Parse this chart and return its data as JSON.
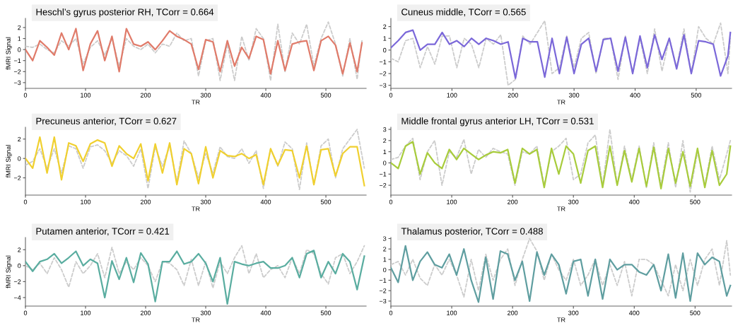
{
  "chart_data": [
    {
      "type": "line",
      "title": "Heschl’s gyrus posterior RH, TCorr = 0.664",
      "xlabel": "TR",
      "ylabel": "fMRI Signal",
      "xlim": [
        0,
        567
      ],
      "ylim": [
        -3.52,
        2.83
      ],
      "xticks": [
        0,
        100,
        200,
        300,
        400,
        500
      ],
      "yticks": [
        -3,
        -2,
        -1,
        0,
        1,
        2
      ],
      "x": [
        0,
        12,
        24,
        36,
        48,
        60,
        72,
        84,
        96,
        108,
        120,
        132,
        144,
        156,
        168,
        180,
        192,
        204,
        216,
        228,
        240,
        252,
        264,
        276,
        288,
        300,
        312,
        324,
        336,
        348,
        360,
        372,
        384,
        396,
        408,
        420,
        432,
        444,
        456,
        468,
        480,
        492,
        504,
        516,
        528,
        540,
        552,
        560
      ],
      "series": [
        {
          "color": "#cccccc",
          "line_style": "dashed",
          "values": [
            0.3,
            0.2,
            0.5,
            0.0,
            -0.3,
            0.8,
            0.3,
            1.0,
            -1.3,
            0.2,
            0.8,
            -0.5,
            1.0,
            -1.5,
            1.0,
            0.3,
            0.0,
            0.5,
            -0.3,
            0.5,
            0.3,
            1.5,
            0.8,
            1.0,
            -2.4,
            0.8,
            1.0,
            -2.8,
            0.5,
            -2.8,
            1.2,
            -1.0,
            1.9,
            1.0,
            -2.8,
            2.3,
            -2.0,
            1.5,
            0.5,
            2.3,
            -1.5,
            1.0,
            2.5,
            0.5,
            -2.4,
            1.0,
            -2.7,
            0.8
          ]
        },
        {
          "color": "#e07b6a",
          "line_style": "solid",
          "values": [
            0.0,
            -1.0,
            0.8,
            0.2,
            -0.5,
            1.5,
            0.0,
            1.9,
            -1.9,
            0.5,
            1.7,
            -1.0,
            1.2,
            -2.0,
            1.9,
            0.5,
            0.3,
            0.7,
            0.0,
            0.8,
            1.7,
            1.2,
            0.9,
            0.5,
            -1.8,
            0.9,
            0.7,
            -2.0,
            0.8,
            -1.5,
            0.2,
            -0.8,
            1.2,
            0.9,
            -2.2,
            0.8,
            -1.9,
            0.5,
            0.7,
            0.8,
            -1.9,
            0.8,
            1.2,
            0.4,
            -2.2,
            0.6,
            -2.0,
            0.6
          ]
        }
      ]
    },
    {
      "type": "line",
      "title": "Cuneus middle, TCorr = 0.565",
      "xlabel": "TR",
      "xlim": [
        0,
        558
      ],
      "ylim": [
        -3.26,
        2.7
      ],
      "xticks": [
        0,
        100,
        200,
        300,
        400,
        500
      ],
      "yticks": [
        -3,
        -2,
        -1,
        0,
        1,
        2
      ],
      "x": [
        0,
        12,
        24,
        36,
        48,
        60,
        72,
        84,
        96,
        108,
        120,
        132,
        144,
        156,
        168,
        180,
        192,
        204,
        216,
        228,
        240,
        252,
        264,
        276,
        288,
        300,
        312,
        324,
        336,
        348,
        360,
        372,
        384,
        396,
        408,
        420,
        432,
        444,
        456,
        468,
        480,
        492,
        504,
        516,
        528,
        540,
        552,
        556
      ],
      "series": [
        {
          "color": "#cccccc",
          "line_style": "dashed",
          "values": [
            -0.7,
            -1.0,
            0.8,
            1.0,
            -1.5,
            0.3,
            -1.2,
            1.2,
            1.2,
            -1.5,
            1.0,
            0.5,
            -1.5,
            1.0,
            0.5,
            1.3,
            -3.0,
            -2.5,
            1.2,
            0.5,
            1.5,
            2.5,
            -2.0,
            -1.5,
            1.2,
            -1.5,
            1.0,
            1.5,
            -2.0,
            1.0,
            1.0,
            -2.5,
            1.2,
            -2.0,
            1.0,
            -2.0,
            1.8,
            -1.8,
            1.0,
            -1.5,
            1.8,
            -2.0,
            2.0,
            1.0,
            0.5,
            2.3,
            -2.0,
            1.0
          ]
        },
        {
          "color": "#7b68d9",
          "line_style": "solid",
          "values": [
            0.2,
            0.8,
            1.5,
            1.7,
            0.0,
            0.5,
            0.5,
            1.5,
            0.5,
            0.8,
            0.3,
            1.0,
            0.5,
            1.0,
            0.8,
            0.5,
            0.7,
            -2.4,
            1.0,
            0.7,
            0.7,
            -2.3,
            1.0,
            -2.0,
            1.1,
            -2.0,
            0.5,
            1.0,
            -1.8,
            0.9,
            1.0,
            -1.8,
            1.1,
            -2.0,
            1.2,
            -1.5,
            1.3,
            -0.8,
            1.0,
            -1.6,
            1.3,
            -2.0,
            0.8,
            0.7,
            0.5,
            -2.2,
            -0.5,
            1.5
          ]
        }
      ]
    },
    {
      "type": "line",
      "title": "Precuneus anterior, TCorr = 0.627",
      "xlabel": "TR",
      "ylabel": "fMRI Signal",
      "xlim": [
        0,
        567
      ],
      "ylim": [
        -3.78,
        3.22
      ],
      "xticks": [
        0,
        100,
        200,
        300,
        400,
        500
      ],
      "yticks": [
        -2,
        0,
        2
      ],
      "x": [
        0,
        12,
        24,
        36,
        48,
        60,
        72,
        84,
        96,
        108,
        120,
        132,
        144,
        156,
        168,
        180,
        192,
        204,
        216,
        228,
        240,
        252,
        264,
        276,
        288,
        300,
        312,
        324,
        336,
        348,
        360,
        372,
        384,
        396,
        408,
        420,
        432,
        444,
        456,
        468,
        480,
        492,
        504,
        516,
        528,
        540,
        552,
        564
      ],
      "series": [
        {
          "color": "#cccccc",
          "line_style": "dashed",
          "values": [
            -0.7,
            -0.3,
            1.0,
            -1.0,
            1.0,
            -1.5,
            1.3,
            1.0,
            -1.0,
            1.2,
            1.4,
            0.8,
            -0.5,
            0.8,
            0.3,
            -0.8,
            1.0,
            -3.1,
            1.2,
            -0.8,
            1.3,
            -2.4,
            1.8,
            0.5,
            -2.0,
            0.5,
            -1.5,
            1.2,
            0.2,
            0.0,
            1.0,
            -0.5,
            0.8,
            -3.1,
            1.0,
            -0.8,
            1.7,
            1.0,
            -3.2,
            1.6,
            -2.7,
            1.3,
            2.0,
            -2.0,
            1.0,
            2.0,
            3.0,
            -1.0
          ]
        },
        {
          "color": "#f0d030",
          "line_style": "solid",
          "values": [
            0.0,
            -1.0,
            2.2,
            -1.5,
            2.2,
            -2.2,
            1.6,
            1.3,
            -0.3,
            1.5,
            1.9,
            1.6,
            -0.8,
            1.3,
            0.5,
            0.0,
            1.5,
            -2.3,
            1.5,
            -1.5,
            1.6,
            -2.7,
            1.0,
            0.5,
            -2.6,
            1.2,
            -2.0,
            0.8,
            0.3,
            0.2,
            0.5,
            0.0,
            0.4,
            -2.7,
            1.0,
            -0.7,
            0.9,
            0.8,
            -2.0,
            1.3,
            -2.7,
            0.9,
            1.0,
            -1.8,
            0.5,
            1.2,
            1.2,
            -2.8
          ]
        }
      ]
    },
    {
      "type": "line",
      "title": "Middle frontal gyrus anterior LH, TCorr = 0.531",
      "xlabel": "TR",
      "xlim": [
        0,
        560
      ],
      "ylim": [
        -2.88,
        3.19
      ],
      "xticks": [
        0,
        100,
        200,
        300,
        400,
        500
      ],
      "yticks": [
        -2,
        -1,
        0,
        1,
        2,
        3
      ],
      "x": [
        0,
        12,
        24,
        36,
        48,
        60,
        72,
        84,
        96,
        108,
        120,
        132,
        144,
        156,
        168,
        180,
        192,
        204,
        216,
        228,
        240,
        252,
        264,
        276,
        288,
        300,
        312,
        324,
        336,
        348,
        360,
        372,
        384,
        396,
        408,
        420,
        432,
        444,
        456,
        468,
        480,
        492,
        504,
        516,
        528,
        540,
        552,
        558
      ],
      "series": [
        {
          "color": "#cccccc",
          "line_style": "dashed",
          "values": [
            0.3,
            0.5,
            1.5,
            2.2,
            -1.5,
            1.0,
            2.0,
            -2.0,
            1.0,
            0.5,
            2.1,
            -1.0,
            1.2,
            0.5,
            1.3,
            1.0,
            0.8,
            -2.0,
            1.0,
            0.8,
            1.5,
            -2.0,
            1.0,
            1.5,
            2.2,
            -1.5,
            -1.0,
            1.8,
            2.5,
            -2.0,
            3.0,
            -2.0,
            1.5,
            -1.5,
            1.5,
            -2.2,
            1.8,
            -2.0,
            1.8,
            -2.2,
            2.0,
            -2.6,
            1.0,
            -2.0,
            1.5,
            -1.5,
            0.8,
            2.0
          ]
        },
        {
          "color": "#a8cc3c",
          "line_style": "solid",
          "values": [
            0.0,
            -0.5,
            1.5,
            1.9,
            -1.0,
            0.9,
            0.0,
            -0.5,
            1.2,
            0.3,
            1.3,
            0.8,
            0.3,
            0.7,
            1.0,
            0.9,
            1.2,
            -1.8,
            1.3,
            0.8,
            1.2,
            -2.2,
            1.3,
            -1.0,
            1.5,
            0.8,
            -1.8,
            1.1,
            1.5,
            -2.2,
            1.5,
            -2.0,
            1.1,
            -1.7,
            1.3,
            -2.1,
            1.4,
            -2.3,
            1.3,
            -1.8,
            1.0,
            -2.1,
            1.3,
            -2.2,
            1.1,
            -2.0,
            -1.0,
            1.5
          ]
        }
      ]
    },
    {
      "type": "line",
      "title": "Putamen anterior, TCorr = 0.421",
      "xlabel": "TR",
      "ylabel": "fMRI Signal",
      "xlim": [
        0,
        567
      ],
      "ylim": [
        -5.07,
        3.53
      ],
      "xticks": [
        0,
        100,
        200,
        300,
        400,
        500
      ],
      "yticks": [
        -4,
        -2,
        0,
        2
      ],
      "x": [
        0,
        12,
        24,
        36,
        48,
        60,
        72,
        84,
        96,
        108,
        120,
        132,
        144,
        156,
        168,
        180,
        192,
        204,
        216,
        228,
        240,
        252,
        264,
        276,
        288,
        300,
        312,
        324,
        336,
        348,
        360,
        372,
        384,
        396,
        408,
        420,
        432,
        444,
        456,
        468,
        480,
        492,
        504,
        516,
        528,
        540,
        552,
        564
      ],
      "series": [
        {
          "color": "#cccccc",
          "line_style": "dashed",
          "values": [
            0.0,
            -0.5,
            0.3,
            -1.0,
            1.0,
            -0.5,
            -2.7,
            0.5,
            -1.0,
            0.0,
            1.5,
            -1.5,
            2.3,
            -1.0,
            0.5,
            -0.5,
            1.0,
            0.0,
            -2.0,
            0.5,
            0.3,
            -0.5,
            -2.5,
            0.8,
            -2.5,
            0.5,
            -2.8,
            0.5,
            -1.0,
            1.0,
            2.5,
            -1.0,
            1.5,
            -1.5,
            -0.5,
            0.0,
            -1.5,
            1.0,
            -1.0,
            2.0,
            1.5,
            -1.0,
            -2.3,
            1.0,
            1.5,
            -1.0,
            0.5,
            2.5
          ]
        },
        {
          "color": "#5aada0",
          "line_style": "solid",
          "values": [
            0.5,
            -0.7,
            0.5,
            0.8,
            1.5,
            0.3,
            1.0,
            1.8,
            0.0,
            0.8,
            0.3,
            -4.0,
            0.6,
            -1.7,
            1.0,
            -2.1,
            1.6,
            0.2,
            -4.5,
            0.5,
            0.5,
            1.8,
            0.2,
            0.5,
            1.5,
            0.3,
            -2.0,
            1.0,
            -4.8,
            0.5,
            0.2,
            0.0,
            0.3,
            0.5,
            -0.3,
            -0.3,
            0.0,
            1.0,
            -1.5,
            1.5,
            1.9,
            -1.5,
            0.5,
            -1.0,
            1.5,
            0.5,
            -3.0,
            1.2
          ]
        }
      ]
    },
    {
      "type": "line",
      "title": "Thalamus posterior, TCorr = 0.488",
      "xlabel": "TR",
      "xlim": [
        0,
        560
      ],
      "ylim": [
        -3.48,
        3.1
      ],
      "xticks": [
        0,
        100,
        200,
        300,
        400,
        500
      ],
      "yticks": [
        -3,
        -2,
        -1,
        0,
        1,
        2,
        3
      ],
      "x": [
        0,
        12,
        24,
        36,
        48,
        60,
        72,
        84,
        96,
        108,
        120,
        132,
        144,
        156,
        168,
        180,
        192,
        204,
        216,
        228,
        240,
        252,
        264,
        276,
        288,
        300,
        312,
        324,
        336,
        348,
        360,
        372,
        384,
        396,
        408,
        420,
        432,
        444,
        456,
        468,
        480,
        492,
        504,
        516,
        528,
        540,
        552,
        558
      ],
      "series": [
        {
          "color": "#cccccc",
          "line_style": "dashed",
          "values": [
            0.5,
            0.8,
            -0.5,
            1.0,
            -0.8,
            -1.5,
            0.5,
            -0.5,
            1.0,
            -0.5,
            -2.6,
            1.0,
            -2.0,
            1.5,
            -1.0,
            1.0,
            2.0,
            -1.5,
            1.0,
            3.0,
            1.8,
            -1.0,
            1.5,
            0.0,
            -1.0,
            1.0,
            -1.5,
            -0.5,
            1.0,
            -1.5,
            0.5,
            -1.5,
            0.8,
            -2.5,
            1.0,
            1.0,
            0.5,
            -1.0,
            -2.5,
            0.5,
            -2.0,
            1.0,
            -1.5,
            1.0,
            2.0,
            -1.5,
            2.8,
            -0.5
          ]
        },
        {
          "color": "#5f9ea0",
          "line_style": "solid",
          "values": [
            0.2,
            -1.2,
            2.3,
            -1.0,
            0.8,
            1.7,
            0.5,
            0.2,
            1.5,
            -0.5,
            2.0,
            -1.0,
            -3.1,
            1.2,
            -2.8,
            1.8,
            1.5,
            -1.0,
            0.8,
            -3.0,
            1.7,
            -0.5,
            1.5,
            0.5,
            -2.3,
            0.8,
            1.0,
            -2.5,
            1.0,
            -2.8,
            1.0,
            0.0,
            0.5,
            0.5,
            -0.2,
            -0.5,
            0.5,
            -2.0,
            1.5,
            -2.7,
            1.6,
            -3.0,
            1.6,
            0.5,
            1.2,
            0.8,
            -2.5,
            -1.5
          ]
        }
      ]
    }
  ]
}
